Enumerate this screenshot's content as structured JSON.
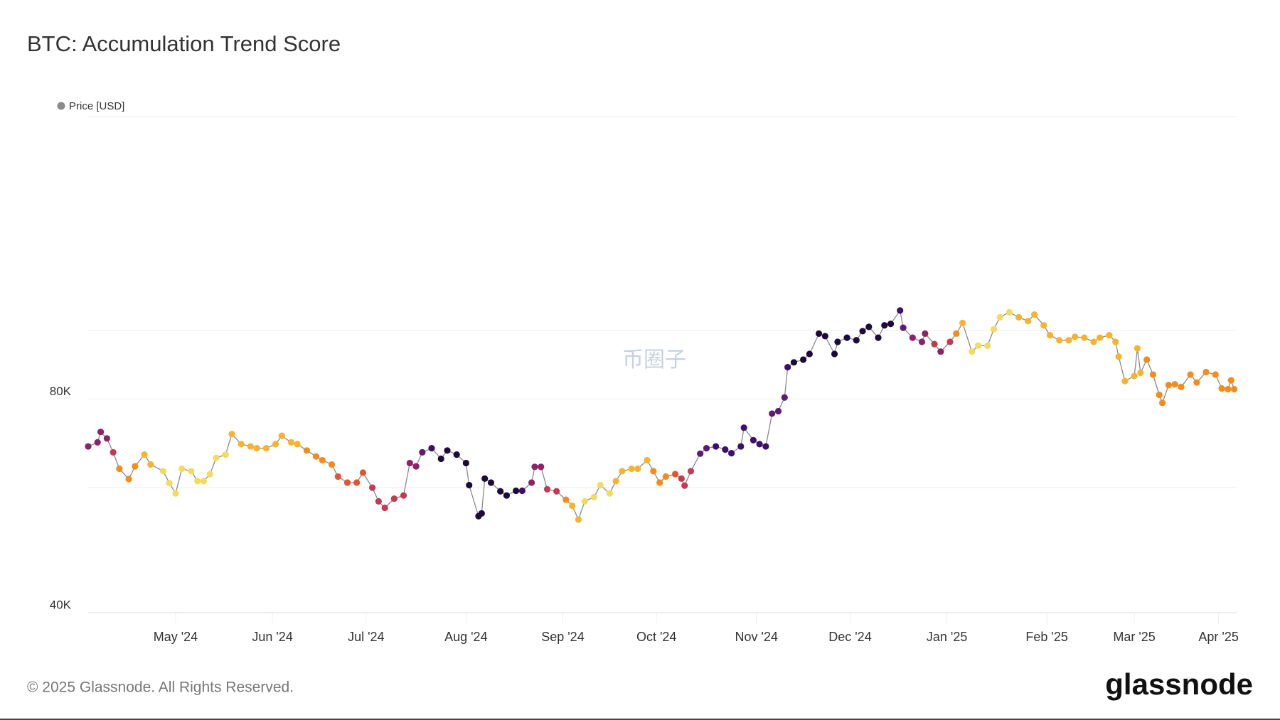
{
  "chart_data": {
    "type": "line",
    "title": "BTC: Accumulation Trend Score",
    "footer": "© 2025 Glassnode. All Rights Reserved.",
    "brand": "glassnode",
    "watermark": "币圈子",
    "log_scale": true,
    "xlim": [
      0,
      368
    ],
    "xticks": [
      {
        "value": 28,
        "label": "May '24"
      },
      {
        "value": 59,
        "label": "Jun '24"
      },
      {
        "value": 89,
        "label": "Jul '24"
      },
      {
        "value": 121,
        "label": "Aug '24"
      },
      {
        "value": 152,
        "label": "Sep '24"
      },
      {
        "value": 182,
        "label": "Oct '24"
      },
      {
        "value": 214,
        "label": "Nov '24"
      },
      {
        "value": 244,
        "label": "Dec '24"
      },
      {
        "value": 275,
        "label": "Jan '25"
      },
      {
        "value": 307,
        "label": "Feb '25"
      },
      {
        "value": 335,
        "label": "Mar '25"
      },
      {
        "value": 362,
        "label": "Apr '25"
      }
    ],
    "ylim": [
      40000,
      200000
    ],
    "yticks": [
      {
        "value": 40000,
        "label": "40K"
      },
      {
        "value": 80000,
        "label": "80K"
      }
    ],
    "gridlines": [
      60000,
      100000,
      200000
    ],
    "series": [
      {
        "name": "Price [USD]",
        "color": "#8a8a8a",
        "x": [
          0,
          3,
          4,
          6,
          8,
          10,
          13,
          15,
          18,
          20,
          24,
          26,
          28,
          30,
          33,
          35,
          37,
          39,
          41,
          44,
          46,
          49,
          52,
          54,
          57,
          60,
          62,
          65,
          67,
          70,
          73,
          75,
          78,
          80,
          83,
          86,
          88,
          91,
          93,
          95,
          98,
          101,
          103,
          105,
          107,
          110,
          113,
          115,
          118,
          121,
          122,
          125,
          126,
          127,
          129,
          132,
          134,
          137,
          139,
          142,
          143,
          145,
          147,
          150,
          153,
          155,
          157,
          159,
          162,
          164,
          167,
          169,
          171,
          174,
          176,
          179,
          181,
          183,
          185,
          188,
          190,
          191,
          193,
          196,
          198,
          201,
          204,
          206,
          209,
          210,
          213,
          215,
          217,
          219,
          221,
          223,
          224,
          226,
          229,
          231,
          234,
          236,
          239,
          240,
          243,
          246,
          248,
          250,
          253,
          255,
          257,
          260,
          261,
          264,
          267,
          268,
          271,
          273,
          276,
          278,
          280,
          283,
          285,
          288,
          290,
          292,
          295,
          298,
          301,
          303,
          306,
          308,
          311,
          314,
          316,
          319,
          322,
          324,
          327,
          329,
          330,
          332,
          335,
          336,
          337,
          339,
          341,
          343,
          344,
          346,
          348,
          350,
          353,
          355,
          358,
          361,
          363,
          365,
          366,
          367
        ],
        "values": [
          68600,
          69500,
          71900,
          70400,
          67300,
          63800,
          61700,
          64300,
          66800,
          64700,
          63300,
          60900,
          58900,
          63800,
          63300,
          61300,
          61300,
          62700,
          66100,
          66800,
          71400,
          69100,
          68600,
          68200,
          68200,
          69100,
          71000,
          69500,
          69100,
          67700,
          66400,
          65600,
          64700,
          62200,
          61000,
          61000,
          63000,
          60000,
          57400,
          56200,
          57900,
          58500,
          65000,
          64300,
          67300,
          68200,
          65900,
          67700,
          66800,
          65000,
          60500,
          54700,
          55200,
          61800,
          61000,
          59300,
          58500,
          59400,
          59400,
          61000,
          64200,
          64200,
          59700,
          59300,
          57700,
          56600,
          54100,
          57400,
          58200,
          60500,
          58900,
          61300,
          63300,
          63800,
          63800,
          65600,
          63300,
          61000,
          62200,
          62700,
          61800,
          60400,
          63300,
          67000,
          68200,
          68600,
          67900,
          67100,
          68600,
          72900,
          70000,
          69100,
          68600,
          76300,
          76900,
          80400,
          88700,
          90100,
          90900,
          92600,
          98900,
          98100,
          92600,
          96300,
          97600,
          96800,
          99700,
          101100,
          97600,
          101600,
          102100,
          106600,
          100800,
          97600,
          96300,
          98900,
          95600,
          93300,
          96300,
          98900,
          102400,
          93300,
          95100,
          95100,
          100300,
          104300,
          106000,
          104300,
          103000,
          105200,
          101600,
          98400,
          96800,
          96800,
          97900,
          97600,
          96300,
          97600,
          98400,
          96300,
          91800,
          84800,
          86200,
          94300,
          87100,
          90900,
          86600,
          81100,
          79000,
          83700,
          83900,
          83200,
          86600,
          84400,
          87300,
          86600,
          82800,
          82600,
          85000,
          82600
        ],
        "point_colors": [
          "#8c2369",
          "#8c2369",
          "#8c2369",
          "#8c2369",
          "#c23b52",
          "#f58b1b",
          "#f58b1b",
          "#f58b1b",
          "#f7b32b",
          "#f7b32b",
          "#f3dc5c",
          "#f3dc5c",
          "#f3dc5c",
          "#f3dc5c",
          "#f3dc5c",
          "#f3dc5c",
          "#f3dc5c",
          "#f3dc5c",
          "#f3dc5c",
          "#f3dc5c",
          "#f7b32b",
          "#f7b32b",
          "#f7b32b",
          "#f7b32b",
          "#f7b32b",
          "#f7b32b",
          "#f7b32b",
          "#f7b32b",
          "#f7b32b",
          "#f58b1b",
          "#f58b1b",
          "#f58b1b",
          "#f58b1b",
          "#e4552f",
          "#e4552f",
          "#e4552f",
          "#e4552f",
          "#c23b52",
          "#c23b52",
          "#c23b52",
          "#c23b52",
          "#c23b52",
          "#8c2369",
          "#8c2369",
          "#5f1a72",
          "#3d0f6b",
          "#1c0b3a",
          "#1c0b3a",
          "#1c0b3a",
          "#1c0b3a",
          "#1c0b3a",
          "#1c0b3a",
          "#1c0b3a",
          "#1c0b3a",
          "#1c0b3a",
          "#1c0b3a",
          "#1c0b3a",
          "#1c0b3a",
          "#3d0f6b",
          "#8c2369",
          "#8c2369",
          "#8c2369",
          "#c23b52",
          "#c23b52",
          "#f58b1b",
          "#f7b32b",
          "#f7b32b",
          "#f3dc5c",
          "#f3dc5c",
          "#f3dc5c",
          "#f3dc5c",
          "#f7b32b",
          "#f7b32b",
          "#f7b32b",
          "#f7b32b",
          "#f7b32b",
          "#f58b1b",
          "#f58b1b",
          "#f58b1b",
          "#e4552f",
          "#c23b52",
          "#c23b52",
          "#c23b52",
          "#5f1a72",
          "#5f1a72",
          "#3d0f6b",
          "#3d0f6b",
          "#3d0f6b",
          "#3d0f6b",
          "#3d0f6b",
          "#3d0f6b",
          "#3d0f6b",
          "#3d0f6b",
          "#5f1a72",
          "#5f1a72",
          "#5f1a72",
          "#3d0f6b",
          "#1c0b3a",
          "#1c0b3a",
          "#1c0b3a",
          "#1c0b3a",
          "#1c0b3a",
          "#1c0b3a",
          "#1c0b3a",
          "#1c0b3a",
          "#1c0b3a",
          "#1c0b3a",
          "#1c0b3a",
          "#1c0b3a",
          "#1c0b3a",
          "#1c0b3a",
          "#3d0f6b",
          "#5f1a72",
          "#8c2369",
          "#8c2369",
          "#8c2369",
          "#c23b52",
          "#8c2369",
          "#c23b52",
          "#f58b1b",
          "#f7b32b",
          "#f3dc5c",
          "#f3dc5c",
          "#f3dc5c",
          "#f3dc5c",
          "#f3dc5c",
          "#f3dc5c",
          "#f7b32b",
          "#f7b32b",
          "#f7b32b",
          "#f7b32b",
          "#f7b32b",
          "#f7b32b",
          "#f7b32b",
          "#f7b32b",
          "#f7b32b",
          "#f7b32b",
          "#f7b32b",
          "#f7b32b",
          "#f7b32b",
          "#f7b32b",
          "#f7b32b",
          "#f7b32b",
          "#f7b32b",
          "#f7b32b",
          "#f58b1b",
          "#f58b1b",
          "#f58b1b",
          "#f58b1b",
          "#f58b1b",
          "#f58b1b",
          "#f58b1b",
          "#f58b1b",
          "#f58b1b",
          "#f58b1b",
          "#f58b1b",
          "#f58b1b",
          "#f58b1b",
          "#f58b1b",
          "#f58b1b",
          "#f58b1b"
        ]
      }
    ]
  }
}
